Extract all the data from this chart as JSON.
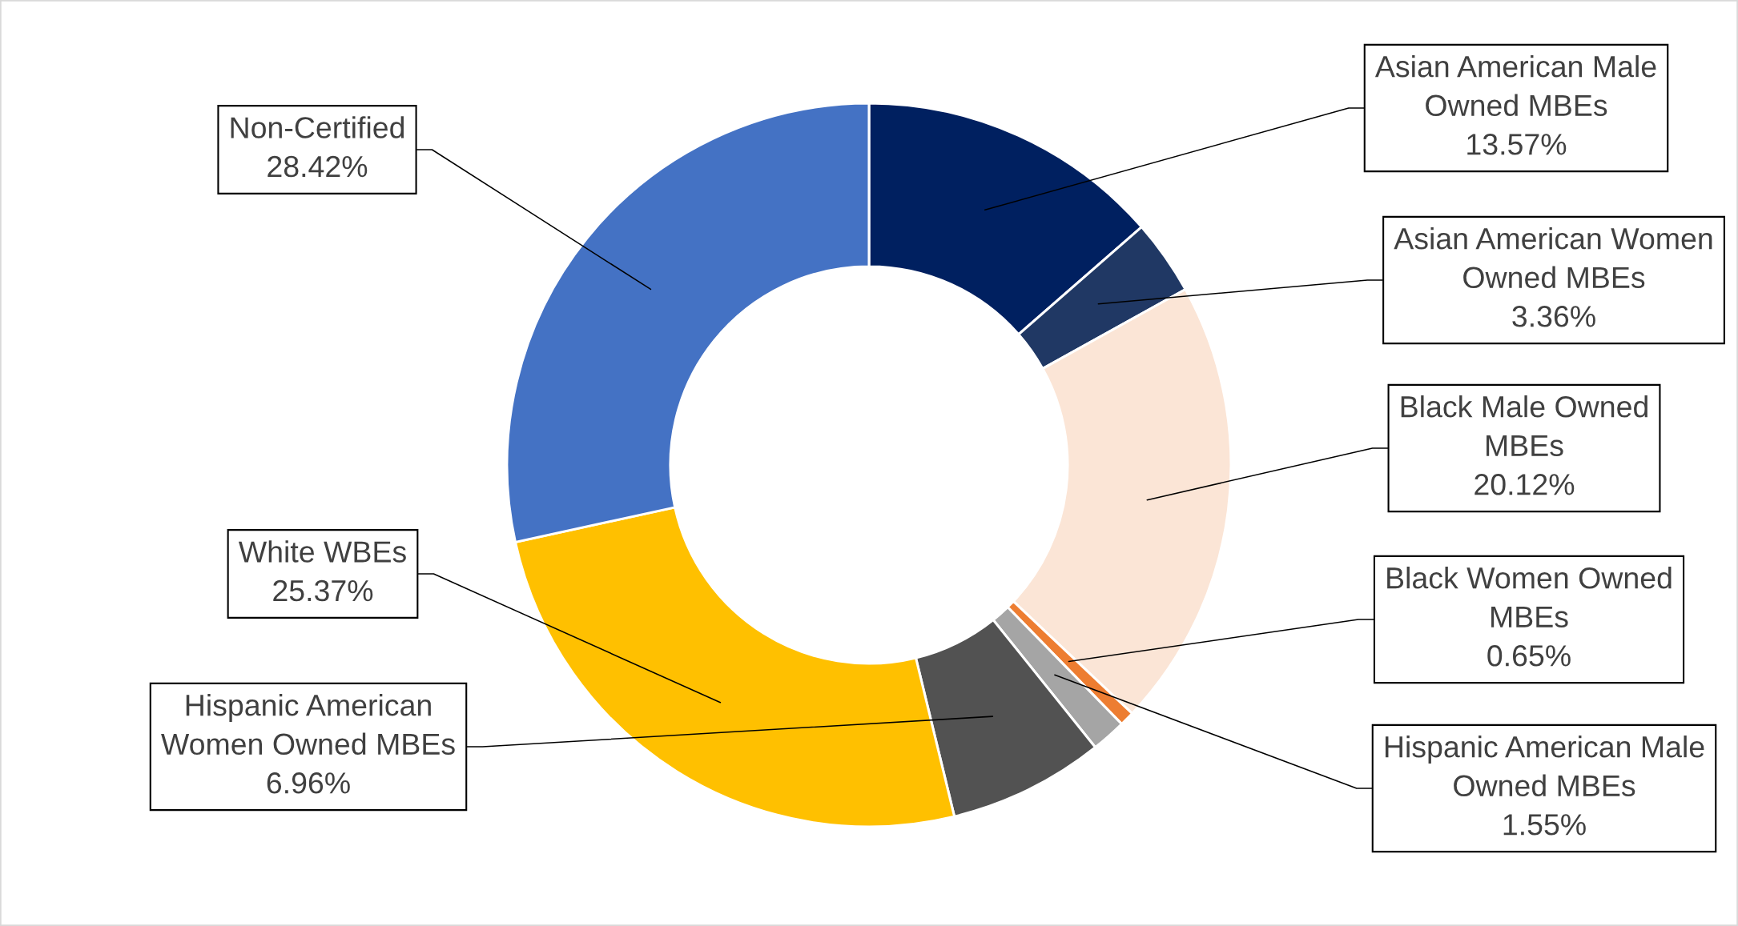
{
  "chart_data": {
    "type": "donut",
    "categories": [
      "Asian American Male Owned MBEs",
      "Asian American Women Owned MBEs",
      "Black Male Owned MBEs",
      "Black Women Owned MBEs",
      "Hispanic American Male Owned MBEs",
      "Hispanic American Women Owned MBEs",
      "White WBEs",
      "Non-Certified"
    ],
    "values": [
      13.57,
      3.36,
      20.12,
      0.65,
      1.55,
      6.96,
      25.37,
      28.42
    ],
    "colors": [
      "#002060",
      "#203864",
      "#fbe5d6",
      "#ed7d31",
      "#a5a5a5",
      "#525252",
      "#ffc000",
      "#4472c4"
    ],
    "value_labels": [
      "13.57%",
      "3.36%",
      "20.12%",
      "0.65%",
      "1.55%",
      "6.96%",
      "25.37%",
      "28.42%"
    ]
  }
}
